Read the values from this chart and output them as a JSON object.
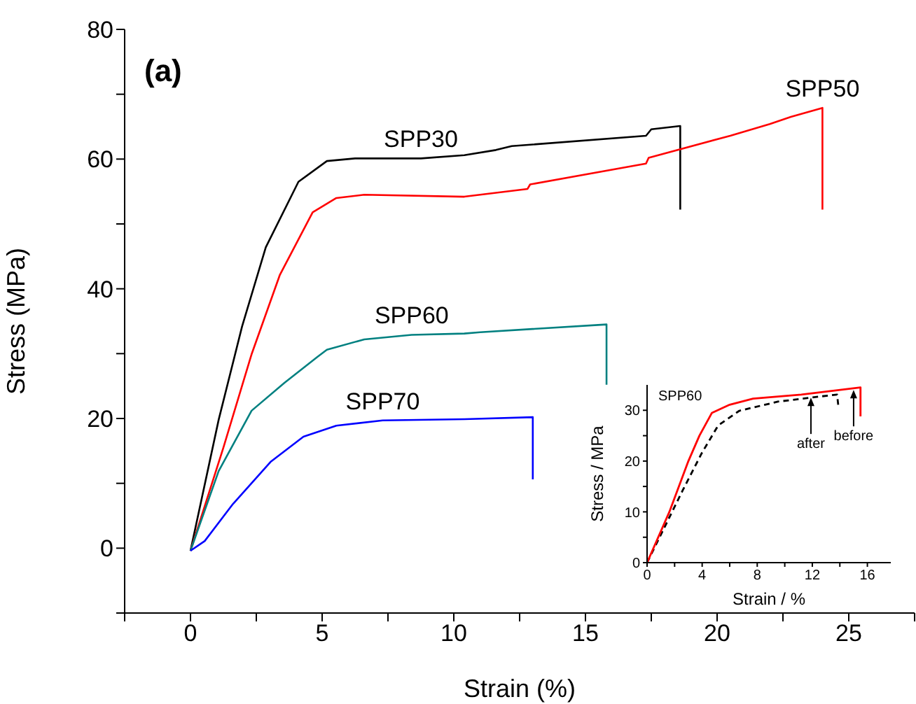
{
  "chart_data": [
    {
      "type": "line",
      "title": "(a)",
      "xlabel": "Strain (%)",
      "ylabel": "Stress (MPa)",
      "xlim": [
        -2.5,
        27.5
      ],
      "ylim": [
        -10,
        80
      ],
      "xticks": [
        {
          "value": -2.5,
          "label": null
        },
        0,
        {
          "value": 2.5,
          "label": null
        },
        5,
        {
          "value": 7.5,
          "label": null
        },
        10,
        {
          "value": 12.5,
          "label": null
        },
        15,
        {
          "value": 17.5,
          "label": null
        },
        20,
        {
          "value": 22.5,
          "label": null
        },
        25,
        {
          "value": 27.5,
          "label": null
        }
      ],
      "yticks": [
        {
          "value": -10,
          "label": null
        },
        0,
        {
          "value": 10,
          "label": null
        },
        20,
        {
          "value": 30,
          "label": null
        },
        40,
        {
          "value": 50,
          "label": null
        },
        60,
        {
          "value": 70,
          "label": null
        },
        80
      ],
      "series": [
        {
          "name": "SPP30",
          "color": "#000000",
          "x": [
            0,
            1.07,
            1.96,
            2.86,
            4.1,
            5.18,
            6.25,
            8.75,
            10.4,
            11.6,
            12.2,
            17.3,
            17.5,
            18.6,
            18.6
          ],
          "values": [
            -0.4,
            19.8,
            34.2,
            46.4,
            56.5,
            59.7,
            60.1,
            60.1,
            60.6,
            61.4,
            62.0,
            63.6,
            64.6,
            65.1,
            52.2
          ]
        },
        {
          "name": "SPP50",
          "color": "#ff0000",
          "x": [
            0,
            1.25,
            2.32,
            3.39,
            4.64,
            5.54,
            6.6,
            10.4,
            12.8,
            12.9,
            17.3,
            17.4,
            20.5,
            22.0,
            22.8,
            24.0,
            24.0
          ],
          "values": [
            -0.4,
            15.5,
            29.9,
            42.1,
            51.8,
            54.0,
            54.5,
            54.2,
            55.4,
            56.1,
            59.3,
            60.2,
            63.6,
            65.4,
            66.5,
            67.9,
            52.2
          ]
        },
        {
          "name": "SPP60",
          "color": "#008080",
          "x": [
            0,
            1.07,
            2.32,
            3.57,
            4.82,
            5.18,
            6.6,
            8.4,
            10.4,
            11.0,
            15.8,
            15.8
          ],
          "values": [
            -0.4,
            11.9,
            21.2,
            25.5,
            29.5,
            30.6,
            32.2,
            32.9,
            33.1,
            33.3,
            34.5,
            25.2
          ]
        },
        {
          "name": "SPP70",
          "color": "#0000ff",
          "x": [
            0,
            0.54,
            1.61,
            3.04,
            4.29,
            5.54,
            7.3,
            10.4,
            13.0,
            13.0
          ],
          "values": [
            -0.4,
            1.1,
            6.8,
            13.3,
            17.2,
            18.9,
            19.7,
            19.9,
            20.2,
            10.6
          ]
        }
      ]
    },
    {
      "type": "line",
      "title": "SPP60",
      "xlabel": "Strain / %",
      "ylabel": "Stress / MPa",
      "xlim": [
        0,
        17.7
      ],
      "ylim": [
        0,
        35
      ],
      "xticks": [
        0,
        {
          "value": 2,
          "label": null
        },
        4,
        {
          "value": 6,
          "label": null
        },
        8,
        {
          "value": 10,
          "label": null
        },
        12,
        {
          "value": 14,
          "label": null
        },
        16
      ],
      "yticks": [
        0,
        {
          "value": 5,
          "label": null
        },
        10,
        {
          "value": 15,
          "label": null
        },
        20,
        {
          "value": 25,
          "label": null
        },
        30
      ],
      "annotations": [
        {
          "text": "after",
          "x": 11.9,
          "y": 32.5
        },
        {
          "text": "before",
          "x": 15.0,
          "y": 34
        }
      ],
      "series": [
        {
          "color": "#000000",
          "line_style": "dashed",
          "x": [
            0,
            2.58,
            3.96,
            5.16,
            6.7,
            9.5,
            11.9,
            13.8,
            13.9
          ],
          "values": [
            0,
            14.2,
            21.5,
            27.0,
            29.9,
            31.7,
            32.5,
            33.1,
            30.6
          ]
        },
        {
          "color": "#ff0000",
          "x": [
            0,
            1.62,
            3.0,
            3.8,
            4.71,
            6.0,
            7.7,
            11.2,
            15.5,
            15.5
          ],
          "values": [
            0,
            10,
            20,
            25,
            29.5,
            31.1,
            32.3,
            33.1,
            34.5,
            28.8
          ]
        }
      ]
    }
  ]
}
